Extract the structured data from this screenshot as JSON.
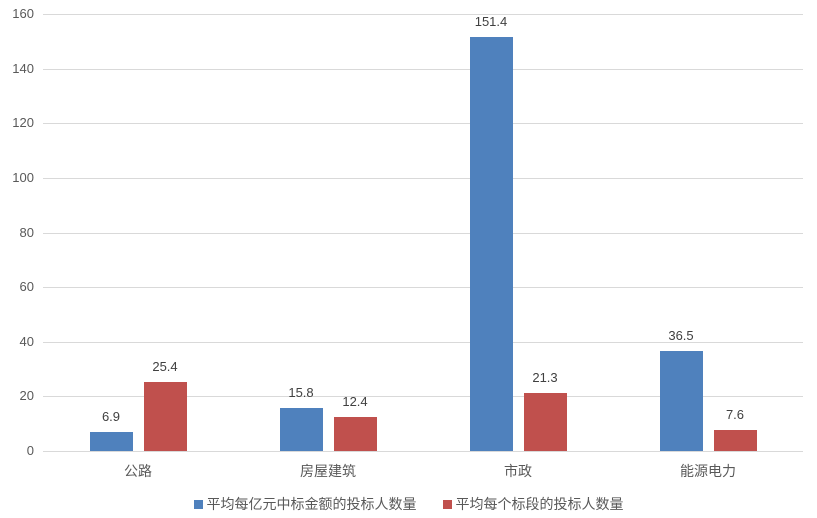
{
  "chart_data": {
    "type": "bar",
    "title": "",
    "xlabel": "",
    "ylabel": "",
    "categories": [
      "公路",
      "房屋建筑",
      "市政",
      "能源电力"
    ],
    "series": [
      {
        "name": "平均每亿元中标金额的投标人数量",
        "color": "#4f81bd",
        "values": [
          6.9,
          15.8,
          151.4,
          36.5
        ]
      },
      {
        "name": "平均每个标段的投标人数量",
        "color": "#c0504d",
        "values": [
          25.4,
          12.4,
          21.3,
          7.6
        ]
      }
    ],
    "ylim": [
      0,
      160
    ],
    "yticks": [
      0,
      20,
      40,
      60,
      80,
      100,
      120,
      140,
      160
    ],
    "grid": true,
    "legend_position": "bottom",
    "data_labels": true
  },
  "labels": {
    "yticks": [
      "0",
      "20",
      "40",
      "60",
      "80",
      "100",
      "120",
      "140",
      "160"
    ],
    "categories": [
      "公路",
      "房屋建筑",
      "市政",
      "能源电力"
    ],
    "series0_values": [
      "6.9",
      "15.8",
      "151.4",
      "36.5"
    ],
    "series1_values": [
      "25.4",
      "12.4",
      "21.3",
      "7.6"
    ],
    "legend": [
      "平均每亿元中标金额的投标人数量",
      "平均每个标段的投标人数量"
    ]
  }
}
